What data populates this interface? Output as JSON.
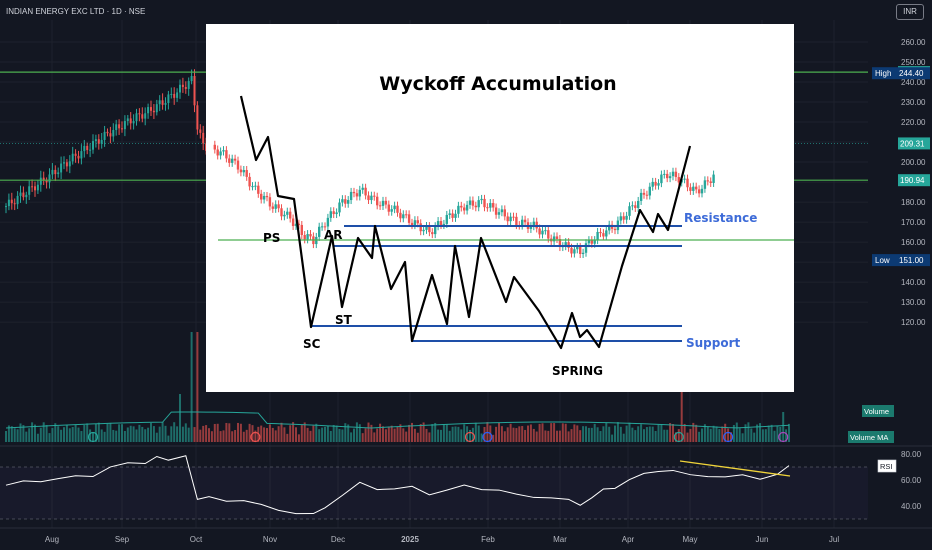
{
  "header": {
    "symbol": "INDIAN ENERGY EXC LTD · 1D · NSE",
    "currency": "INR"
  },
  "colors": {
    "background": "#131722",
    "up": "#26a69a",
    "down": "#ef5350",
    "support_line": "#4caf50",
    "annotation_blue": "#1e4fa8",
    "annotation_text_blue": "#3d6bd8",
    "rsi_line": "#ffffff",
    "trendline": "#f0d43a"
  },
  "chart_data": [
    {
      "type": "candlestick",
      "title": "",
      "ylim": [
        120,
        265
      ],
      "ytick_labels": [
        "260.00",
        "250.00",
        "240.00",
        "230.00",
        "220.00",
        "210.00",
        "200.00",
        "190.00",
        "180.00",
        "170.00",
        "160.00",
        "150.00",
        "140.00",
        "130.00",
        "120.00"
      ],
      "x_tick_labels": [
        "Aug",
        "Sep",
        "Oct",
        "Nov",
        "Dec",
        "2025",
        "Feb",
        "Mar",
        "Apr",
        "May",
        "Jun",
        "Jul"
      ],
      "price_badges": [
        {
          "label": "244.95",
          "value": 244.95,
          "color": "#26a69a"
        },
        {
          "label": "High",
          "value2": "244.40",
          "value": 244.4,
          "color": "#0c3a73"
        },
        {
          "label": "209.31",
          "value": 209.31,
          "color": "#26a69a"
        },
        {
          "label": "190.94",
          "value": 190.94,
          "color": "#26a69a"
        },
        {
          "label": "Low",
          "value2": "151.00",
          "value": 151.0,
          "color": "#0c3a73"
        }
      ],
      "horizontal_levels": [
        244.95,
        190.94
      ],
      "close_approx": [
        [
          0,
          178
        ],
        [
          8,
          186
        ],
        [
          15,
          193
        ],
        [
          22,
          201
        ],
        [
          29,
          208
        ],
        [
          36,
          215
        ],
        [
          43,
          221
        ],
        [
          50,
          226
        ],
        [
          57,
          233
        ],
        [
          64,
          241
        ],
        [
          66,
          218
        ],
        [
          68,
          208
        ],
        [
          74,
          205
        ],
        [
          80,
          198
        ],
        [
          86,
          186
        ],
        [
          92,
          178
        ],
        [
          98,
          172
        ],
        [
          103,
          163
        ],
        [
          106,
          161
        ],
        [
          110,
          170
        ],
        [
          116,
          180
        ],
        [
          122,
          186
        ],
        [
          128,
          180
        ],
        [
          134,
          176
        ],
        [
          140,
          170
        ],
        [
          146,
          165
        ],
        [
          152,
          172
        ],
        [
          158,
          178
        ],
        [
          164,
          180
        ],
        [
          170,
          175
        ],
        [
          176,
          170
        ],
        [
          182,
          168
        ],
        [
          188,
          162
        ],
        [
          194,
          157
        ],
        [
          198,
          155
        ],
        [
          202,
          161
        ],
        [
          206,
          165
        ],
        [
          210,
          168
        ],
        [
          215,
          176
        ],
        [
          220,
          184
        ],
        [
          225,
          191
        ],
        [
          228,
          194
        ],
        [
          232,
          192
        ],
        [
          238,
          185
        ],
        [
          242,
          190
        ],
        [
          246,
          197
        ],
        [
          250,
          196
        ],
        [
          256,
          199
        ],
        [
          262,
          200
        ],
        [
          266,
          201
        ],
        [
          268,
          204
        ],
        [
          270,
          209
        ]
      ],
      "volume_series": {
        "name": "Volume",
        "ma_name": "Volume MA"
      }
    },
    {
      "type": "line",
      "title": "",
      "series": [
        {
          "name": "RSI"
        }
      ],
      "ytick_labels": [
        "80.00",
        "60.00",
        "40.00"
      ],
      "ylim": [
        30,
        82
      ],
      "values_approx": [
        [
          0,
          56
        ],
        [
          6,
          58
        ],
        [
          12,
          60
        ],
        [
          18,
          61
        ],
        [
          24,
          62
        ],
        [
          30,
          64
        ],
        [
          36,
          70
        ],
        [
          42,
          72
        ],
        [
          48,
          74
        ],
        [
          52,
          78
        ],
        [
          56,
          74
        ],
        [
          62,
          80
        ],
        [
          66,
          45
        ],
        [
          70,
          46
        ],
        [
          76,
          45
        ],
        [
          82,
          44
        ],
        [
          88,
          40
        ],
        [
          94,
          38
        ],
        [
          100,
          34
        ],
        [
          106,
          33
        ],
        [
          110,
          40
        ],
        [
          116,
          48
        ],
        [
          122,
          57
        ],
        [
          128,
          54
        ],
        [
          134,
          53
        ],
        [
          140,
          54
        ],
        [
          146,
          50
        ],
        [
          152,
          52
        ],
        [
          158,
          55
        ],
        [
          164,
          54
        ],
        [
          170,
          52
        ],
        [
          176,
          48
        ],
        [
          182,
          48
        ],
        [
          188,
          46
        ],
        [
          194,
          44
        ],
        [
          198,
          42
        ],
        [
          202,
          46
        ],
        [
          206,
          52
        ],
        [
          210,
          55
        ],
        [
          215,
          60
        ],
        [
          220,
          64
        ],
        [
          225,
          68
        ],
        [
          230,
          67
        ],
        [
          236,
          63
        ],
        [
          242,
          64
        ],
        [
          248,
          62
        ],
        [
          254,
          63
        ],
        [
          260,
          62
        ],
        [
          266,
          64
        ],
        [
          270,
          70
        ]
      ]
    }
  ],
  "overlay": {
    "title": "Wyckoff Accumulation",
    "labels": {
      "ps": "PS",
      "ar": "AR",
      "st": "ST",
      "sc": "SC",
      "spring": "SPRING",
      "resistance": "Resistance",
      "support": "Support"
    }
  }
}
